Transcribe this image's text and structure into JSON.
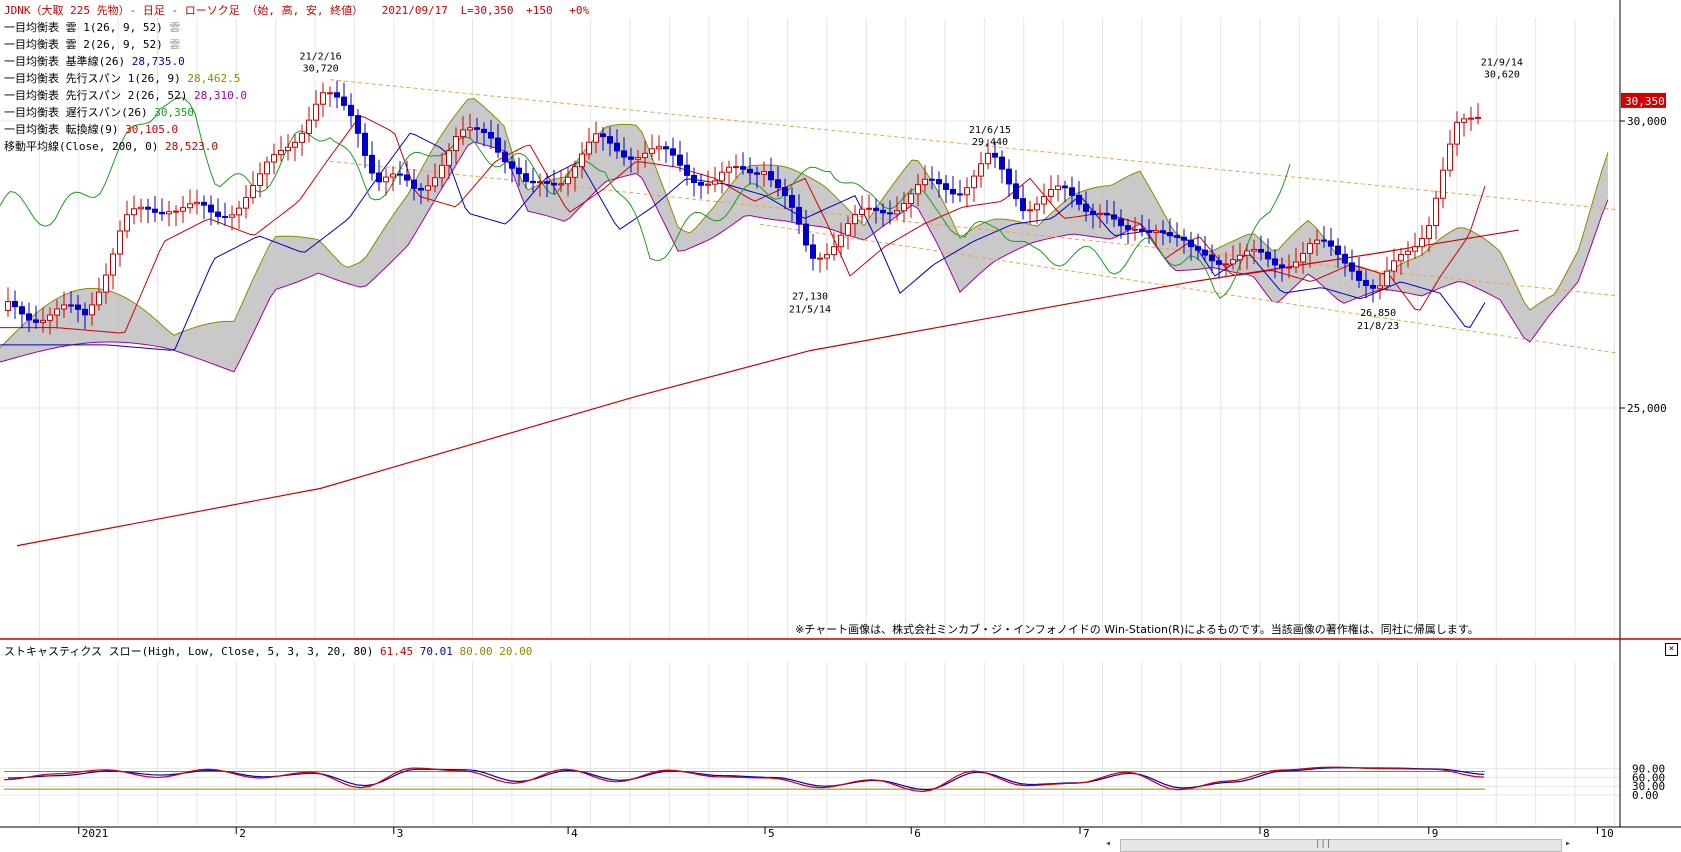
{
  "header": {
    "title": "JDNK（大取 225 先物）- 日足 - ローソク足 （始, 高, 安, 終値）",
    "date": "2021/09/17",
    "last": "L=30,350",
    "change": "+150",
    "pct": "+0%"
  },
  "legend": [
    {
      "label": "一目均衡表 雲 1(26, 9, 52)",
      "value": "雲",
      "color": "#999999"
    },
    {
      "label": "一目均衡表 雲 2(26, 9, 52)",
      "value": "雲",
      "color": "#999999"
    },
    {
      "label": "一目均衡表 基準線(26)",
      "value": "28,735.0",
      "color": "#0000c8"
    },
    {
      "label": "一目均衡表 先行スパン 1(26, 9)",
      "value": "28,462.5",
      "color": "#8a8a00"
    },
    {
      "label": "一目均衡表 先行スパン 2(26, 52)",
      "value": "28,310.0",
      "color": "#a000a0"
    },
    {
      "label": "一目均衡表 遅行スパン(26)",
      "value": "30,350",
      "color": "#1e9b1e"
    },
    {
      "label": "一目均衡表 転換線(9)",
      "value": "30,105.0",
      "color": "#d00000"
    },
    {
      "label": "移動平均線(Close, 200, 0)",
      "value": "28,523.0",
      "color": "#d00000"
    }
  ],
  "price_axis": {
    "ticks": [
      "30,000",
      "25,000"
    ],
    "last_price_label": "30,350"
  },
  "annotations": [
    {
      "date": "21/2/16",
      "value": "30,720"
    },
    {
      "date": "21/6/15",
      "value": "29,440"
    },
    {
      "date": "21/9/14",
      "value": "30,620"
    },
    {
      "date": "21/5/14",
      "value": "27,130"
    },
    {
      "date": "21/8/23",
      "value": "26,850"
    }
  ],
  "copyright": "※チャート画像は、株式会社ミンカブ・ジ・インフォノイドの Win-Station(R)によるものです。当該画像の著作権は、同社に帰属します。",
  "stoch": {
    "label": "ストキャスティクス スロー(High, Low, Close, 5, 3, 3, 20, 80)",
    "v1": "61.45",
    "v2": "70.01",
    "v3": "80.00",
    "v4": "20.00",
    "ticks": [
      "90.00",
      "60.00",
      "30.00",
      "0.00"
    ],
    "close_symbol": "×"
  },
  "x_axis": {
    "labels": [
      "2021",
      "2",
      "3",
      "4",
      "5",
      "6",
      "7",
      "8",
      "9",
      "10"
    ]
  },
  "scrollbar": {
    "grip": "|||",
    "left_arrow": "◂",
    "right_arrow": "▸"
  },
  "colors": {
    "up": "#d00000",
    "down": "#0000c8",
    "kumo_up": "#c0c0c0",
    "kumo_down": "#555555",
    "trend": "#f0a050",
    "grid": "#e6e6e6"
  },
  "chart_data": {
    "type": "candlestick",
    "title": "JDNK（大取 225 先物）- 日足 - ローソク足 （始, 高, 安, 終値）",
    "ylim": [
      20000,
      31700
    ],
    "y_ticks": [
      25000,
      30000
    ],
    "x_months": [
      "2021-01",
      "2021-02",
      "2021-03",
      "2021-04",
      "2021-05",
      "2021-06",
      "2021-07",
      "2021-08",
      "2021-09",
      "2021-10"
    ],
    "close_series": [
      {
        "date": "2020-12-24",
        "close": 26700
      },
      {
        "date": "2021-01-05",
        "close": 26600
      },
      {
        "date": "2021-01-12",
        "close": 28200
      },
      {
        "date": "2021-01-20",
        "close": 28600
      },
      {
        "date": "2021-01-28",
        "close": 28300
      },
      {
        "date": "2021-02-05",
        "close": 28900
      },
      {
        "date": "2021-02-10",
        "close": 29600
      },
      {
        "date": "2021-02-16",
        "close": 30400
      },
      {
        "date": "2021-02-22",
        "close": 30100
      },
      {
        "date": "2021-02-26",
        "close": 29000
      },
      {
        "date": "2021-03-05",
        "close": 28800
      },
      {
        "date": "2021-03-12",
        "close": 29600
      },
      {
        "date": "2021-03-18",
        "close": 29900
      },
      {
        "date": "2021-03-25",
        "close": 28700
      },
      {
        "date": "2021-03-31",
        "close": 29100
      },
      {
        "date": "2021-04-06",
        "close": 29600
      },
      {
        "date": "2021-04-13",
        "close": 29500
      },
      {
        "date": "2021-04-20",
        "close": 29300
      },
      {
        "date": "2021-04-27",
        "close": 28900
      },
      {
        "date": "2021-05-06",
        "close": 29300
      },
      {
        "date": "2021-05-10",
        "close": 28500
      },
      {
        "date": "2021-05-14",
        "close": 27600
      },
      {
        "date": "2021-05-20",
        "close": 28100
      },
      {
        "date": "2021-05-27",
        "close": 28500
      },
      {
        "date": "2021-06-03",
        "close": 28800
      },
      {
        "date": "2021-06-10",
        "close": 28900
      },
      {
        "date": "2021-06-15",
        "close": 29300
      },
      {
        "date": "2021-06-21",
        "close": 28600
      },
      {
        "date": "2021-06-28",
        "close": 28700
      },
      {
        "date": "2021-07-05",
        "close": 28500
      },
      {
        "date": "2021-07-09",
        "close": 27900
      },
      {
        "date": "2021-07-15",
        "close": 28300
      },
      {
        "date": "2021-07-21",
        "close": 27600
      },
      {
        "date": "2021-07-28",
        "close": 27700
      },
      {
        "date": "2021-08-04",
        "close": 27500
      },
      {
        "date": "2021-08-11",
        "close": 27800
      },
      {
        "date": "2021-08-18",
        "close": 27600
      },
      {
        "date": "2021-08-23",
        "close": 26950
      },
      {
        "date": "2021-08-27",
        "close": 27600
      },
      {
        "date": "2021-09-01",
        "close": 28300
      },
      {
        "date": "2021-09-06",
        "close": 29800
      },
      {
        "date": "2021-09-10",
        "close": 30200
      },
      {
        "date": "2021-09-14",
        "close": 30500
      },
      {
        "date": "2021-09-17",
        "close": 30350
      }
    ],
    "ma200": [
      {
        "date": "2020-12-24",
        "value": 22600
      },
      {
        "date": "2021-02-16",
        "value": 23600
      },
      {
        "date": "2021-04-13",
        "value": 25200
      },
      {
        "date": "2021-05-14",
        "value": 26000
      },
      {
        "date": "2021-06-28",
        "value": 26800
      },
      {
        "date": "2021-07-21",
        "value": 27200
      },
      {
        "date": "2021-08-23",
        "value": 27700
      },
      {
        "date": "2021-09-17",
        "value": 28100
      }
    ],
    "highlights": [
      {
        "date": "2021-02-16",
        "value": 30720
      },
      {
        "date": "2021-06-15",
        "value": 29440
      },
      {
        "date": "2021-09-14",
        "value": 30620
      },
      {
        "date": "2021-05-14",
        "value": 27130
      },
      {
        "date": "2021-08-23",
        "value": 26850
      }
    ],
    "stochastic": {
      "ylim": [
        -10,
        105
      ],
      "levels": [
        20,
        80
      ],
      "percent_d": [
        52,
        72,
        86,
        60,
        88,
        58,
        78,
        25,
        92,
        82,
        40,
        88,
        45,
        85,
        62,
        58,
        25,
        52,
        12,
        82,
        32,
        40,
        78,
        18,
        48,
        85,
        95,
        90,
        88,
        61
      ],
      "slow_d": [
        58,
        66,
        82,
        68,
        84,
        62,
        74,
        32,
        88,
        86,
        46,
        84,
        50,
        82,
        66,
        60,
        30,
        50,
        18,
        78,
        36,
        42,
        74,
        24,
        44,
        82,
        93,
        92,
        89,
        70
      ]
    }
  }
}
